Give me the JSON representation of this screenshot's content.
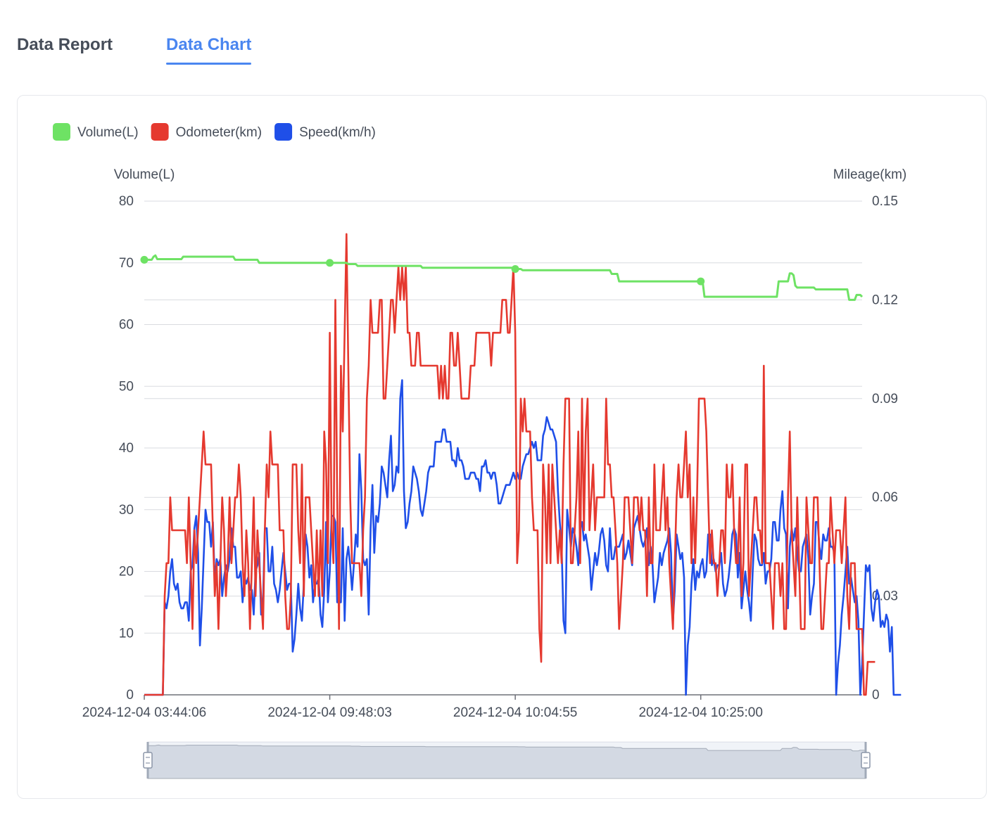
{
  "tabs": [
    {
      "label": "Data Report",
      "active": false
    },
    {
      "label": "Data Chart",
      "active": true
    }
  ],
  "colors": {
    "volume": "#6ee264",
    "odometer": "#e5392f",
    "speed": "#1f4fe8",
    "accent": "#4a86f0"
  },
  "chart_data": {
    "type": "line",
    "legend": [
      "Volume(L)",
      "Odometer(km)",
      "Speed(km/h)"
    ],
    "legend_placement": "top-left",
    "y_left": {
      "label": "Volume(L)",
      "min": 0,
      "max": 80,
      "ticks": [
        "0",
        "10",
        "20",
        "30",
        "40",
        "50",
        "60",
        "70",
        "80"
      ]
    },
    "y_right": {
      "label": "Mileage(km)",
      "min": 0,
      "max": 0.15,
      "ticks": [
        "0",
        "0.03",
        "0.06",
        "0.09",
        "0.12",
        "0.15"
      ]
    },
    "x_tick_labels": [
      "2024-12-04 03:44:06",
      "2024-12-04 09:48:03",
      "2024-12-04 10:04:55",
      "2024-12-04 10:25:00"
    ],
    "x_tick_index": [
      0,
      100,
      200,
      300
    ],
    "point_count": 388,
    "grid": true,
    "data_zoom": {
      "start_percent": 0,
      "end_percent": 100
    },
    "series": [
      {
        "name": "Volume(L)",
        "axis": "left",
        "values": [
          [
            0,
            70.5
          ],
          [
            5,
            71
          ],
          [
            6,
            71.2
          ],
          [
            7,
            70.6
          ],
          [
            20,
            70.6
          ],
          [
            21,
            71
          ],
          [
            48,
            71
          ],
          [
            49,
            70.5
          ],
          [
            60,
            70.5
          ],
          [
            62,
            70
          ],
          [
            100,
            70
          ],
          [
            110,
            69.8
          ],
          [
            115,
            69.5
          ],
          [
            148,
            69.5
          ],
          [
            150,
            69.2
          ],
          [
            200,
            69
          ],
          [
            204,
            68.8
          ],
          [
            250,
            68.8
          ],
          [
            252,
            68.2
          ],
          [
            256,
            67
          ],
          [
            300,
            67
          ],
          [
            302,
            64.5
          ],
          [
            340,
            64.5
          ],
          [
            342,
            67
          ],
          [
            347,
            67
          ],
          [
            348,
            68.3
          ],
          [
            350,
            68
          ],
          [
            351,
            66.3
          ],
          [
            352,
            66
          ],
          [
            360,
            66
          ],
          [
            362,
            65.7
          ],
          [
            378,
            65.7
          ],
          [
            380,
            64
          ],
          [
            383,
            64
          ],
          [
            384,
            64.8
          ],
          [
            387,
            64.5
          ]
        ],
        "markers": [
          0,
          100,
          200,
          300
        ]
      },
      {
        "name": "Odometer(km)",
        "axis": "right",
        "values": [
          0,
          0,
          0,
          0,
          0,
          0,
          0,
          0,
          0,
          0,
          0,
          0.03,
          0.04,
          0.04,
          0.06,
          0.05,
          0.05,
          0.05,
          0.05,
          0.05,
          0.05,
          0.05,
          0.05,
          0.04,
          0.06,
          0.04,
          0.02,
          0.05,
          0.04,
          0.05,
          0.06,
          0.07,
          0.08,
          0.07,
          0.07,
          0.07,
          0.07,
          0.05,
          0.03,
          0.04,
          0.02,
          0.04,
          0.06,
          0.05,
          0.03,
          0.04,
          0.06,
          0.04,
          0.05,
          0.06,
          0.06,
          0.07,
          0.06,
          0.04,
          0.03,
          0.05,
          0.04,
          0.02,
          0.04,
          0.06,
          0.03,
          0.05,
          0.04,
          0.03,
          0.02,
          0.05,
          0.07,
          0.06,
          0.08,
          0.07,
          0.07,
          0.07,
          0.07,
          0.05,
          0.05,
          0.05,
          0.03,
          0.02,
          0.02,
          0.03,
          0.07,
          0.07,
          0.07,
          0.05,
          0.04,
          0.07,
          0.03,
          0.06,
          0.06,
          0.06,
          0.05,
          0.04,
          0.03,
          0.05,
          0.03,
          0.05,
          0.03,
          0.08,
          0.07,
          0.04,
          0.11,
          0.05,
          0.04,
          0.12,
          0.06,
          0.02,
          0.1,
          0.08,
          0.11,
          0.14,
          0.1,
          0.06,
          0.04,
          0.04,
          0.04,
          0.04,
          0.04,
          0.03,
          0.05,
          0.06,
          0.09,
          0.1,
          0.12,
          0.11,
          0.11,
          0.11,
          0.11,
          0.12,
          0.12,
          0.09,
          0.09,
          0.1,
          0.11,
          0.12,
          0.12,
          0.11,
          0.12,
          0.13,
          0.12,
          0.13,
          0.12,
          0.13,
          0.11,
          0.11,
          0.1,
          0.1,
          0.1,
          0.11,
          0.11,
          0.1,
          0.1,
          0.1,
          0.1,
          0.1,
          0.1,
          0.1,
          0.1,
          0.1,
          0.1,
          0.09,
          0.1,
          0.09,
          0.1,
          0.09,
          0.09,
          0.11,
          0.11,
          0.1,
          0.1,
          0.11,
          0.1,
          0.09,
          0.09,
          0.09,
          0.09,
          0.09,
          0.1,
          0.1,
          0.1,
          0.11,
          0.11,
          0.11,
          0.11,
          0.11,
          0.11,
          0.11,
          0.11,
          0.1,
          0.11,
          0.11,
          0.11,
          0.11,
          0.11,
          0.12,
          0.12,
          0.12,
          0.11,
          0.11,
          0.12,
          0.13,
          0.11,
          0.04,
          0.05,
          0.09,
          0.08,
          0.09,
          0.08,
          0.08,
          0.08,
          0.06,
          0.05,
          0.05,
          0.05,
          0.02,
          0.01,
          0.07,
          0.06,
          0.04,
          0.07,
          0.04,
          0.07,
          0.06,
          0.05,
          0.04,
          0.05,
          0.04,
          0.07,
          0.09,
          0.09,
          0.09,
          0.04,
          0.04,
          0.05,
          0.06,
          0.08,
          0.04,
          0.09,
          0.05,
          0.08,
          0.09,
          0.05,
          0.06,
          0.07,
          0.05,
          0.06,
          0.06,
          0.06,
          0.06,
          0.06,
          0.09,
          0.07,
          0.07,
          0.06,
          0.06,
          0.05,
          0.04,
          0.02,
          0.03,
          0.04,
          0.06,
          0.06,
          0.06,
          0.05,
          0.04,
          0.06,
          0.06,
          0.06,
          0.05,
          0.06,
          0.05,
          0.05,
          0.03,
          0.06,
          0.04,
          0.04,
          0.07,
          0.05,
          0.05,
          0.05,
          0.06,
          0.07,
          0.05,
          0.06,
          0.04,
          0.03,
          0.02,
          0.04,
          0.06,
          0.07,
          0.06,
          0.06,
          0.07,
          0.08,
          0.06,
          0.07,
          0.04,
          0.06,
          0.04,
          0.06,
          0.09,
          0.09,
          0.09,
          0.09,
          0.08,
          0.06,
          0.04,
          0.05,
          0.04,
          0.04,
          0.03,
          0.04,
          0.05,
          0.05,
          0.04,
          0.07,
          0.06,
          0.06,
          0.07,
          0.05,
          0.04,
          0.04,
          0.06,
          0.03,
          0.04,
          0.07,
          0.07,
          0.03,
          0.04,
          0.05,
          0.06,
          0.06,
          0.05,
          0.05,
          0.04,
          0.1,
          0.04,
          0.04,
          0.04,
          0.03,
          0.02,
          0.04,
          0.04,
          0.04,
          0.03,
          0.04,
          0.02,
          0.02,
          0.06,
          0.08,
          0.05,
          0.04,
          0.03,
          0.06,
          0.04,
          0.02,
          0.02,
          0.02,
          0.06,
          0.05,
          0.04,
          0.04,
          0.06,
          0.06,
          0.06,
          0.04,
          0.02,
          0.02,
          0.03,
          0.04,
          0.04,
          0.06,
          0.05,
          0.04,
          0.05,
          0.05,
          0.05,
          0.04,
          0.05,
          0.06,
          0.03,
          0.02,
          0.04,
          0.04,
          0.04,
          0.02,
          0.02,
          0.02,
          0.02,
          0,
          0,
          0.01,
          0.01,
          0.01,
          0.01,
          0.01
        ]
      },
      {
        "name": "Speed(km/h)",
        "axis": "left",
        "values": [
          0,
          0,
          0,
          0,
          0,
          0,
          0,
          0,
          0,
          0,
          0,
          15,
          14,
          16,
          20,
          22,
          18,
          17,
          18,
          15,
          14,
          14,
          15,
          15,
          12,
          20,
          21,
          27,
          29,
          23,
          8,
          14,
          22,
          30,
          28,
          28,
          24,
          28,
          18,
          22,
          21,
          22,
          16,
          19,
          21,
          20,
          22,
          27,
          24,
          24,
          19,
          19,
          20,
          15,
          19,
          18,
          19,
          17,
          17,
          13,
          20,
          21,
          23,
          13,
          15,
          27,
          27,
          20,
          20,
          24,
          18,
          17,
          15,
          17,
          20,
          23,
          20,
          17,
          18,
          18,
          7,
          9,
          13,
          18,
          14,
          12,
          18,
          26,
          24,
          19,
          21,
          15,
          18,
          18,
          19,
          13,
          11,
          17,
          28,
          15,
          20,
          29,
          29,
          28,
          15,
          15,
          15,
          27,
          12,
          22,
          24,
          21,
          17,
          21,
          26,
          24,
          39,
          33,
          22,
          21,
          22,
          13,
          27,
          34,
          23,
          29,
          28,
          31,
          37,
          36,
          34,
          32,
          38,
          42,
          33,
          34,
          37,
          36,
          48,
          51,
          33,
          27,
          28,
          31,
          33,
          37,
          36,
          35,
          33,
          30,
          29,
          31,
          33,
          36,
          37,
          37,
          37,
          41,
          41,
          41,
          41,
          43,
          43,
          41,
          41,
          41,
          38,
          38,
          37,
          40,
          38,
          38,
          37,
          35,
          35,
          35,
          36,
          36,
          36,
          35,
          35,
          33,
          37,
          37,
          38,
          36,
          36,
          35,
          36,
          36,
          34,
          31,
          31,
          32,
          33,
          34,
          34,
          34,
          35,
          36,
          35,
          36,
          35,
          35,
          37,
          38,
          39,
          39,
          40,
          41,
          40,
          41,
          38,
          38,
          38,
          42,
          43,
          45,
          44,
          43,
          43,
          42,
          41,
          33,
          28,
          24,
          12,
          10,
          30,
          27,
          24,
          27,
          26,
          24,
          21,
          27,
          28,
          25,
          26,
          24,
          22,
          17,
          20,
          23,
          21,
          23,
          26,
          27,
          25,
          21,
          20,
          27,
          22,
          22,
          24,
          24,
          24,
          25,
          26,
          22,
          23,
          25,
          23,
          21,
          27,
          28,
          29,
          27,
          25,
          24,
          25,
          27,
          21,
          24,
          21,
          15,
          17,
          19,
          23,
          21,
          23,
          24,
          25,
          27,
          23,
          12,
          17,
          26,
          24,
          22,
          23,
          19,
          0,
          8,
          11,
          18,
          22,
          17,
          20,
          19,
          21,
          22,
          19,
          20,
          26,
          26,
          21,
          22,
          20,
          21,
          21,
          23,
          18,
          16,
          17,
          19,
          22,
          26,
          27,
          26,
          19,
          23,
          14,
          17,
          20,
          17,
          15,
          12,
          20,
          26,
          25,
          22,
          21,
          21,
          23,
          18,
          20,
          20,
          22,
          28,
          28,
          25,
          25,
          30,
          33,
          27,
          26,
          14,
          24,
          27,
          25,
          27,
          23,
          20,
          20,
          24,
          25,
          26,
          22,
          13,
          16,
          18,
          28,
          28,
          24,
          22,
          26,
          25,
          25,
          27,
          24,
          24,
          23,
          0,
          5,
          8,
          13,
          16,
          20,
          24,
          18,
          19,
          17,
          15,
          16,
          12,
          0,
          5,
          13,
          21,
          20,
          21,
          14,
          12,
          15,
          17,
          16,
          11,
          12,
          11,
          13,
          12,
          7,
          11,
          0,
          0,
          0,
          0,
          0
        ]
      }
    ]
  }
}
